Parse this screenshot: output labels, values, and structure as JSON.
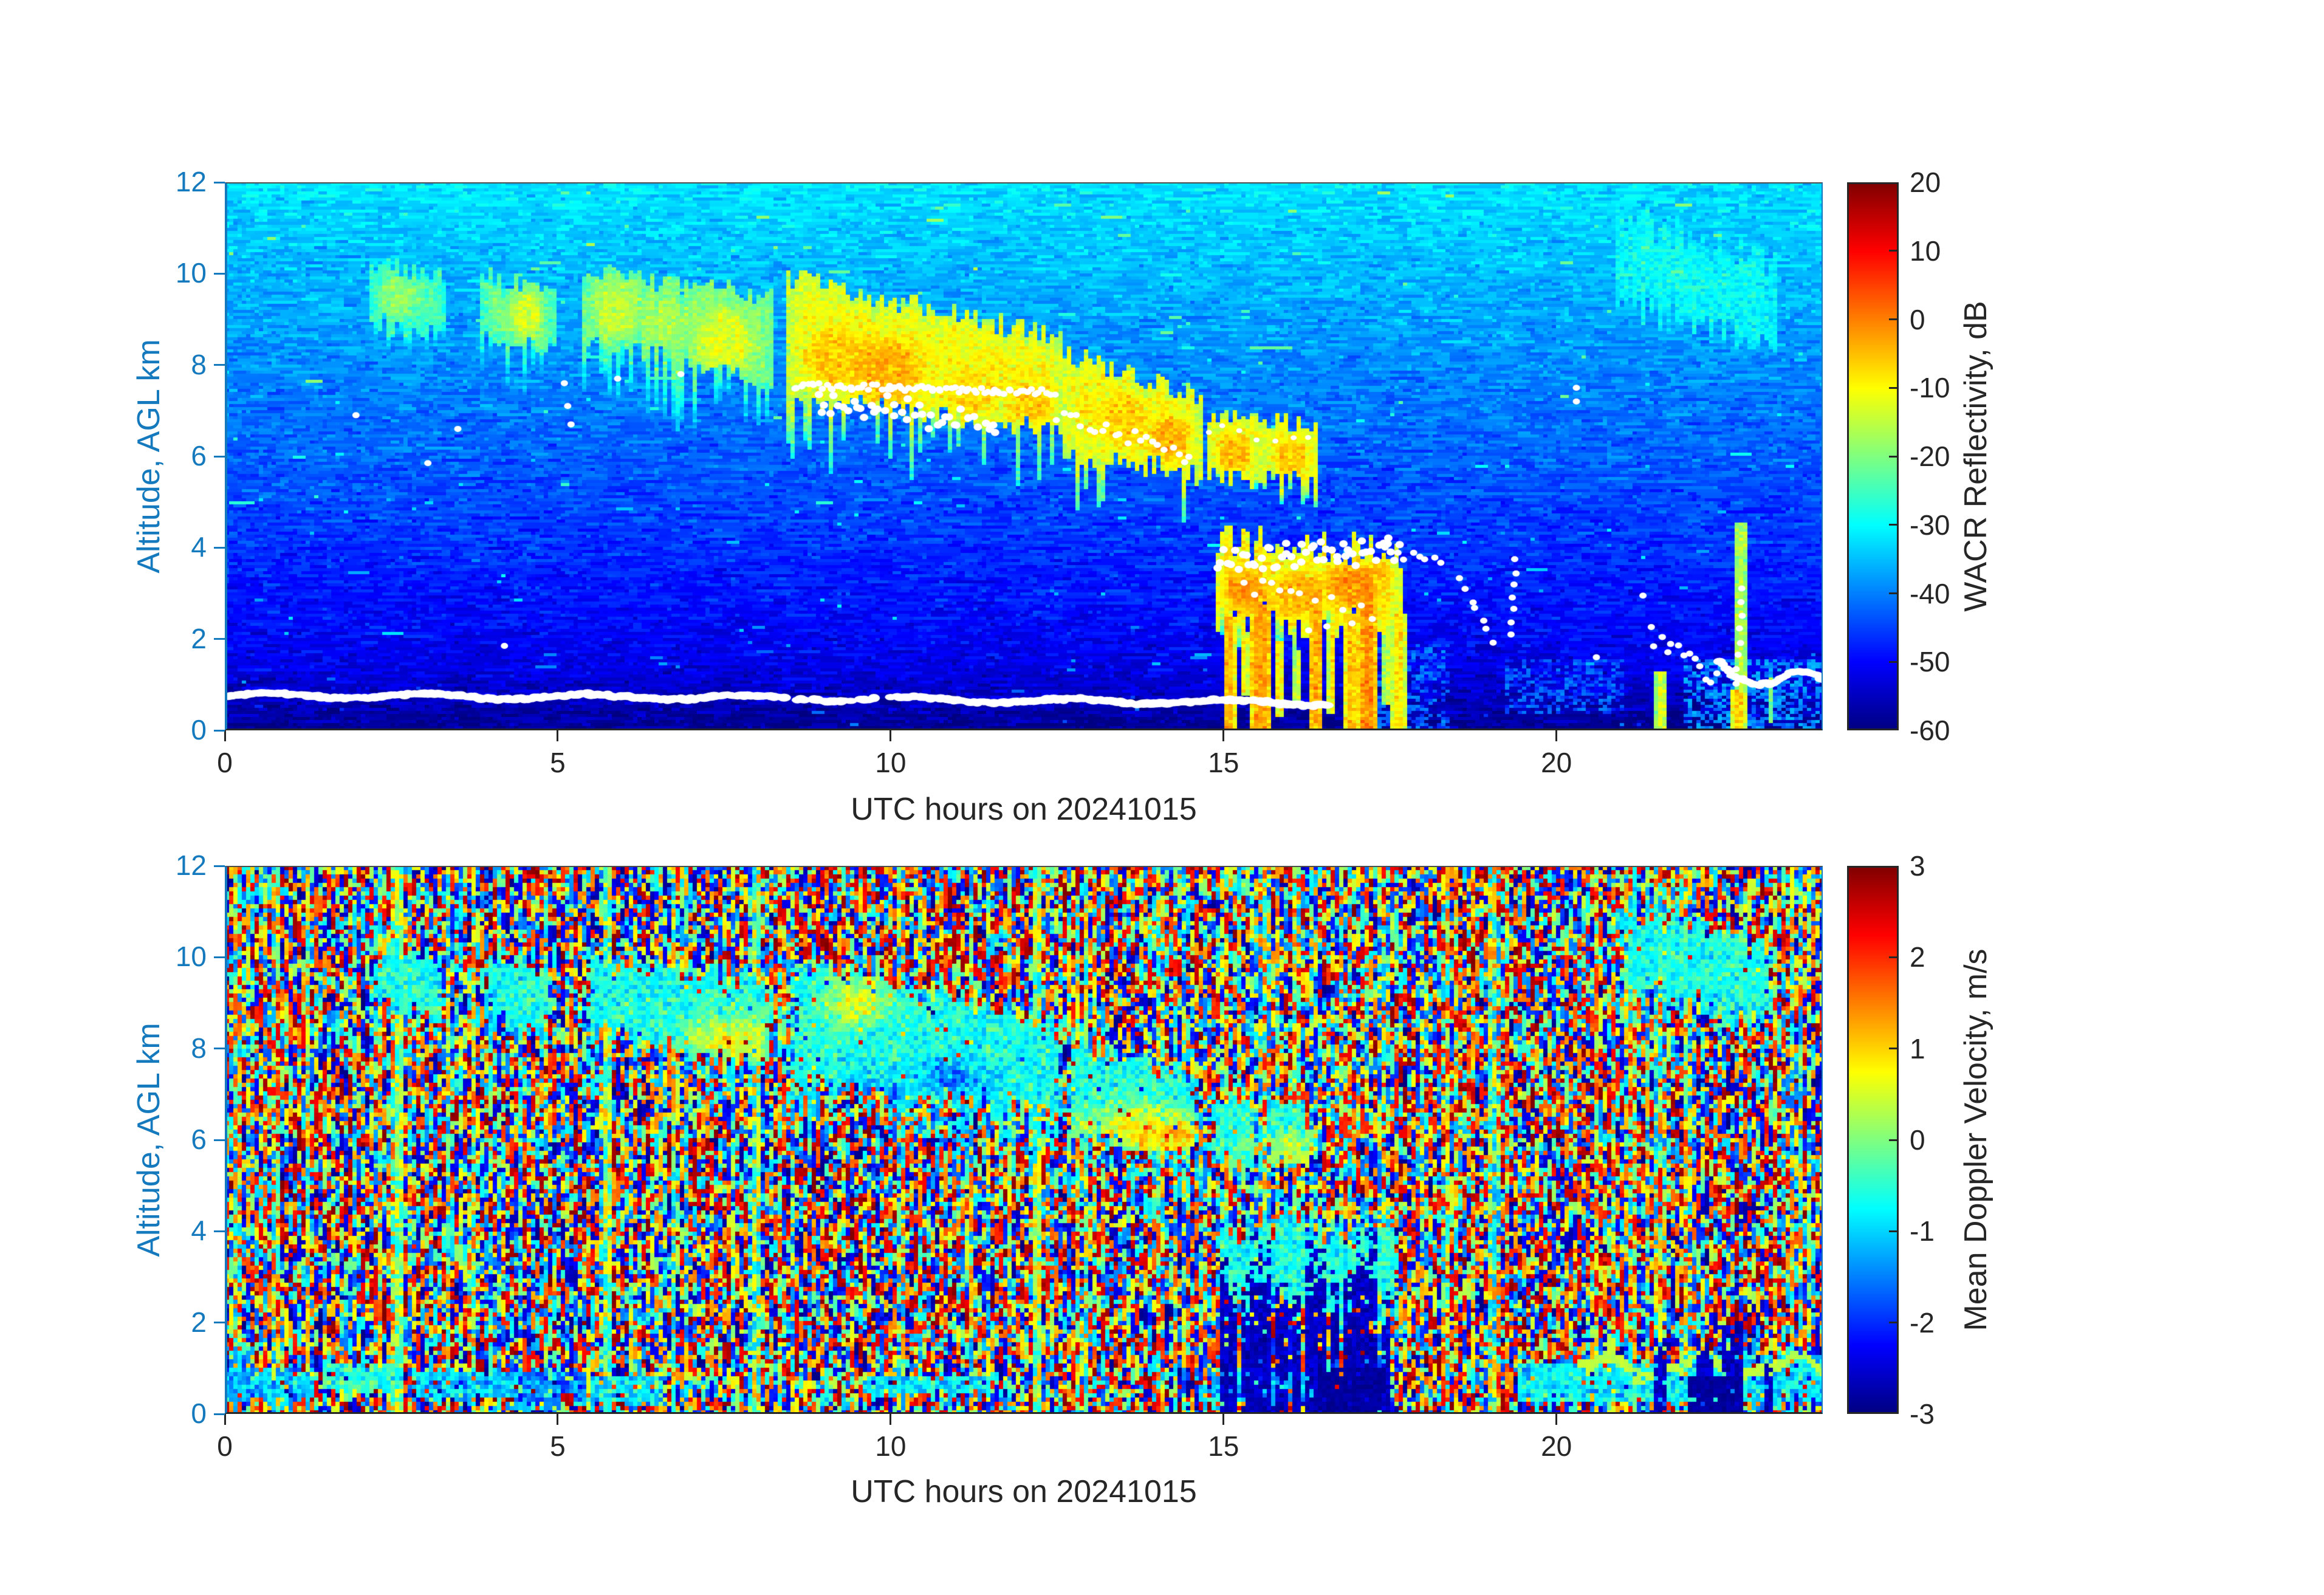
{
  "chart_data": {
    "type": "heatmap",
    "figure_kind": "cloud radar time-height quicklook with two stacked panels",
    "colormap": "jet",
    "panels": [
      {
        "id": "reflectivity",
        "xlabel": "UTC hours on 20241015",
        "ylabel": "Altitude, AGL km",
        "xlim": [
          0,
          24
        ],
        "ylim": [
          0,
          12
        ],
        "xticks": [
          0,
          5,
          10,
          15,
          20
        ],
        "yticks": [
          0,
          2,
          4,
          6,
          8,
          10,
          12
        ],
        "colorbar": {
          "label": "WACR Reflectivity, dB",
          "min": -60,
          "max": 20,
          "ticks": [
            20,
            10,
            0,
            -10,
            -20,
            -30,
            -40,
            -50,
            -60
          ]
        },
        "background": {
          "db_at_12km": -32,
          "db_at_0km": -56,
          "noise_db": 2.2,
          "dark_below_km": 1.3
        },
        "cloud_bands": [
          {
            "t": [
              2.15,
              3.35
            ],
            "ztop": [
              10.25,
              9.95
            ],
            "zbot": [
              9.0,
              8.75
            ],
            "db_edge": -27,
            "db_core": -19,
            "cores": [
              [
                2.6,
                0.35,
                9.5,
                0.45,
                -19
              ]
            ],
            "fall": 0.6,
            "jitter": 0.22
          },
          {
            "t": [
              3.85,
              4.95
            ],
            "ztop": [
              10.0,
              9.7
            ],
            "zbot": [
              8.75,
              8.3
            ],
            "db_edge": -25,
            "db_core": -14,
            "cores": [
              [
                4.55,
                0.28,
                9.1,
                0.55,
                -14
              ]
            ],
            "fall": 1.2,
            "jitter": 0.22
          },
          {
            "t": [
              5.35,
              8.25
            ],
            "ztop": [
              10.05,
              9.5
            ],
            "zbot": [
              8.6,
              7.6
            ],
            "db_edge": -23,
            "db_core": -12,
            "cores": [
              [
                5.85,
                0.35,
                9.2,
                0.6,
                -15
              ],
              [
                6.6,
                0.3,
                8.9,
                0.5,
                -17
              ],
              [
                7.5,
                0.45,
                8.55,
                0.7,
                -12
              ]
            ],
            "fall": 1.3,
            "jitter": 0.25
          },
          {
            "t": [
              8.45,
              12.6
            ],
            "ztop": [
              9.9,
              8.6
            ],
            "zbot": [
              7.3,
              6.6
            ],
            "db_edge": -15,
            "db_core": -4,
            "cores": [
              [
                9.15,
                0.5,
                8.2,
                0.7,
                -6
              ],
              [
                9.9,
                0.6,
                7.9,
                0.8,
                -4
              ],
              [
                11.2,
                0.5,
                7.45,
                0.6,
                -8
              ],
              [
                12.1,
                0.4,
                7.2,
                0.5,
                -7
              ]
            ],
            "fall": 1.6,
            "jitter": 0.25
          },
          {
            "t": [
              12.6,
              14.65
            ],
            "ztop": [
              8.25,
              7.3
            ],
            "zbot": [
              6.1,
              5.6
            ],
            "db_edge": -14,
            "db_core": -4,
            "cores": [
              [
                13.5,
                0.4,
                6.8,
                0.6,
                -6
              ],
              [
                14.2,
                0.35,
                6.4,
                0.5,
                -4
              ]
            ],
            "fall": 1.2,
            "jitter": 0.25
          },
          {
            "t": [
              14.75,
              15.55
            ],
            "ztop": [
              6.95,
              6.8
            ],
            "zbot": [
              5.6,
              5.5
            ],
            "db_edge": -13,
            "db_core": -5,
            "cores": [
              [
                15.15,
                0.3,
                6.1,
                0.4,
                -5
              ]
            ],
            "fall": 0.4,
            "jitter": 0.2
          },
          {
            "t": [
              15.6,
              16.4
            ],
            "ztop": [
              6.85,
              6.6
            ],
            "zbot": [
              5.55,
              5.45
            ],
            "db_edge": -13,
            "db_core": -6,
            "cores": [
              [
                16.0,
                0.3,
                6.0,
                0.4,
                -6
              ]
            ],
            "fall": 0.4,
            "jitter": 0.2
          },
          {
            "t": [
              14.85,
              17.65
            ],
            "ztop": [
              4.15,
              3.95
            ],
            "zbot": [
              2.5,
              2.3
            ],
            "db_edge": -13,
            "db_core": -2,
            "cores": [
              [
                15.3,
                0.4,
                3.1,
                0.5,
                -3
              ],
              [
                16.1,
                0.4,
                3.0,
                0.5,
                -4
              ],
              [
                16.9,
                0.4,
                3.2,
                0.5,
                -2
              ],
              [
                17.4,
                0.25,
                3.4,
                0.4,
                -6
              ]
            ],
            "fall": 0.8,
            "jitter": 0.4
          },
          {
            "t": [
              20.9,
              23.3
            ],
            "ztop": [
              11.3,
              10.2
            ],
            "zbot": [
              9.3,
              8.6
            ],
            "db_edge": -31,
            "db_core": -28,
            "cores": [],
            "fall": 0.5,
            "jitter": 0.4
          }
        ],
        "precip_streaks": [
          [
            15.07,
            0.1,
            2.5,
            0.0,
            -4
          ],
          [
            15.3,
            0.06,
            2.2,
            0.8,
            -10
          ],
          [
            15.55,
            0.16,
            2.8,
            0.0,
            -2
          ],
          [
            15.82,
            0.07,
            2.0,
            0.3,
            -8
          ],
          [
            16.1,
            0.05,
            1.8,
            0.5,
            -12
          ],
          [
            16.38,
            0.12,
            3.2,
            0.0,
            -3
          ],
          [
            16.62,
            0.06,
            2.4,
            0.4,
            -9
          ],
          [
            16.9,
            0.1,
            2.6,
            0.0,
            -5
          ],
          [
            17.15,
            0.14,
            3.6,
            0.0,
            -1
          ],
          [
            17.45,
            0.08,
            2.8,
            0.6,
            -14
          ],
          [
            17.62,
            0.1,
            2.6,
            0.0,
            -8
          ],
          [
            21.55,
            0.08,
            1.3,
            0.0,
            -12
          ],
          [
            22.75,
            0.12,
            4.6,
            0.0,
            -16
          ],
          [
            22.72,
            0.1,
            0.9,
            0.0,
            -6
          ],
          [
            23.2,
            0.05,
            1.2,
            0.2,
            -20
          ]
        ],
        "low_level_haze": [
          [
            17.3,
            18.4,
            0.0,
            1.9,
            -44
          ],
          [
            19.2,
            21.0,
            0.4,
            1.6,
            -45
          ],
          [
            21.9,
            24.2,
            0.0,
            1.6,
            -41
          ]
        ],
        "surface_clutter_line": [
          {
            "t": [
              0.0,
              8.3
            ],
            "z": [
              0.76,
              0.72
            ]
          },
          {
            "t": [
              8.35,
              11.0
            ],
            "z": [
              0.71,
              0.66
            ],
            "gap": 0.45
          },
          {
            "t": [
              11.0,
              16.6
            ],
            "z": [
              0.66,
              0.6
            ]
          }
        ],
        "lidar_dot_lines": [
          {
            "t": [
              8.55,
              12.45
            ],
            "z": [
              7.55,
              7.4
            ],
            "n": 75,
            "jz": 0.07,
            "r": [
              6,
              5
            ]
          },
          {
            "t": [
              8.9,
              11.6
            ],
            "z": [
              7.3,
              6.65
            ],
            "n": 42,
            "jz": 0.33,
            "r": [
              7,
              6
            ]
          },
          {
            "t": [
              12.5,
              14.5
            ],
            "z": [
              6.95,
              6.0
            ],
            "n": 22,
            "jz": 0.18,
            "r": [
              6,
              5
            ]
          },
          {
            "t": [
              14.75,
              16.3
            ],
            "z": [
              6.6,
              6.4
            ],
            "n": 7,
            "jz": 0.15,
            "r": [
              5,
              4
            ]
          },
          {
            "t": [
              14.9,
              17.65
            ],
            "z": [
              3.72,
              3.95
            ],
            "n": 52,
            "jz": 0.3,
            "r": [
              7,
              6
            ]
          },
          {
            "t": [
              15.3,
              17.2
            ],
            "z": [
              3.0,
              2.2
            ],
            "n": 15,
            "jz": 0.5,
            "r": [
              6,
              5
            ]
          },
          {
            "t": [
              17.4,
              18.25
            ],
            "z": [
              3.9,
              3.75
            ],
            "n": 9,
            "jz": 0.12,
            "r": [
              6,
              5
            ]
          },
          {
            "t": [
              18.55,
              19.05
            ],
            "z": [
              3.3,
              1.95
            ],
            "n": 7,
            "jz": 0.08,
            "r": [
              6,
              5
            ]
          },
          {
            "t": [
              19.3,
              19.38
            ],
            "z": [
              2.05,
              3.75
            ],
            "n": 7,
            "jz": 0.05,
            "r": [
              6,
              5
            ]
          },
          {
            "t": [
              21.4,
              22.4
            ],
            "z": [
              2.1,
              1.15
            ],
            "n": 13,
            "jz": 0.22,
            "r": [
              6,
              5
            ]
          },
          {
            "t": [
              22.7,
              22.78
            ],
            "z": [
              1.0,
              3.1
            ],
            "n": 8,
            "jz": 0.06,
            "r": [
              6,
              5
            ]
          }
        ],
        "lidar_dot_points": [
          [
            1.97,
            6.9
          ],
          [
            3.05,
            5.85
          ],
          [
            3.5,
            6.6
          ],
          [
            4.2,
            1.85
          ],
          [
            5.1,
            7.6
          ],
          [
            5.15,
            7.1
          ],
          [
            5.2,
            6.7
          ],
          [
            5.9,
            7.7
          ],
          [
            6.85,
            7.8
          ],
          [
            20.3,
            7.5
          ],
          [
            20.3,
            7.2
          ],
          [
            21.3,
            2.95
          ],
          [
            20.6,
            1.6
          ]
        ],
        "lidar_dot_polyline": [
          [
            22.45,
            1.5
          ],
          [
            22.7,
            1.15
          ],
          [
            23.0,
            1.0
          ],
          [
            23.3,
            1.05
          ],
          [
            23.55,
            1.3
          ],
          [
            23.8,
            1.25
          ],
          [
            24.05,
            1.1
          ]
        ]
      },
      {
        "id": "velocity",
        "xlabel": "UTC hours on 20241015",
        "ylabel": "Altitude, AGL km",
        "xlim": [
          0,
          24
        ],
        "ylim": [
          0,
          12
        ],
        "xticks": [
          0,
          5,
          10,
          15,
          20
        ],
        "yticks": [
          0,
          2,
          4,
          6,
          8,
          10,
          12
        ],
        "colorbar": {
          "label": "Mean Doppler Velocity, m/s",
          "min": -3,
          "max": 3,
          "ticks": [
            3,
            2,
            1,
            0,
            -1,
            -2,
            -3
          ]
        },
        "noise": {
          "extreme_fraction": 0.42,
          "vertical_run_prob": 0.3,
          "column_bias_prob": 0.22,
          "green_columns": [
            [
              1.2,
              1,
              0.5
            ],
            [
              2.55,
              2,
              0.7
            ],
            [
              3.35,
              1,
              0.45
            ],
            [
              5.65,
              2,
              0.6
            ],
            [
              6.7,
              1,
              0.5
            ],
            [
              7.9,
              2,
              0.55
            ],
            [
              11.2,
              1,
              0.45
            ],
            [
              12.15,
              2,
              0.65
            ],
            [
              12.9,
              1,
              0.5
            ],
            [
              18.95,
              2,
              0.5
            ],
            [
              21.45,
              1,
              0.45
            ],
            [
              23.5,
              1,
              0.4
            ]
          ]
        },
        "cloud_velocity": -0.6,
        "warm_patches": [
          [
            7.6,
            0.7,
            8.2,
            0.6
          ],
          [
            9.45,
            0.45,
            9.0,
            0.5
          ],
          [
            13.6,
            0.8,
            6.3,
            0.5
          ],
          [
            14.35,
            0.5,
            6.05,
            0.4
          ],
          [
            16.0,
            0.5,
            5.75,
            0.35
          ]
        ],
        "cold_pockets": [
          [
            9.7,
            0.4,
            6.9,
            0.4
          ],
          [
            10.9,
            0.5,
            7.3,
            0.5
          ]
        ],
        "downdraft_streaks": [
          [
            15.05,
            0.12,
            3.0
          ],
          [
            15.3,
            0.06,
            2.6
          ],
          [
            15.55,
            0.18,
            3.2
          ],
          [
            15.85,
            0.08,
            2.6
          ],
          [
            16.1,
            0.06,
            2.2
          ],
          [
            16.38,
            0.14,
            3.3
          ],
          [
            16.65,
            0.08,
            2.6
          ],
          [
            16.9,
            0.12,
            2.8
          ],
          [
            17.15,
            0.16,
            3.4
          ],
          [
            17.45,
            0.06,
            2.2
          ],
          [
            21.55,
            0.1,
            1.5
          ],
          [
            22.2,
            0.12,
            1.3
          ],
          [
            22.6,
            0.16,
            1.7
          ],
          [
            23.15,
            0.07,
            1.1
          ]
        ],
        "downdraft_blobs": [
          [
            16.4,
            17.4,
            0.0,
            1.0
          ],
          [
            21.95,
            22.8,
            0.0,
            0.8
          ]
        ],
        "surface_bands": [
          [
            0.0,
            1.35,
            0.35,
            1.0,
            -1.1
          ],
          [
            1.45,
            2.65,
            0.55,
            1.1,
            -0.55
          ],
          [
            2.9,
            4.4,
            0.35,
            0.95,
            -1.0
          ],
          [
            4.5,
            5.45,
            0.25,
            0.95,
            -1.5
          ],
          [
            5.5,
            6.6,
            0.3,
            0.8,
            -0.9
          ],
          [
            9.6,
            11.5,
            0.45,
            0.8,
            -0.8
          ],
          [
            14.8,
            16.5,
            0.3,
            0.9,
            -1.2
          ],
          [
            19.4,
            22.0,
            0.3,
            1.15,
            -0.8
          ],
          [
            22.0,
            24.2,
            0.3,
            1.3,
            -0.9
          ]
        ],
        "green_wave": {
          "t": [
            20.3,
            24.2
          ],
          "z_base": 1.05,
          "amp": 0.2,
          "v": 0.35
        },
        "updraft_spots": [
          [
            5.15,
            0.12,
            0.35,
            0.16,
            2.6
          ]
        ]
      }
    ]
  }
}
